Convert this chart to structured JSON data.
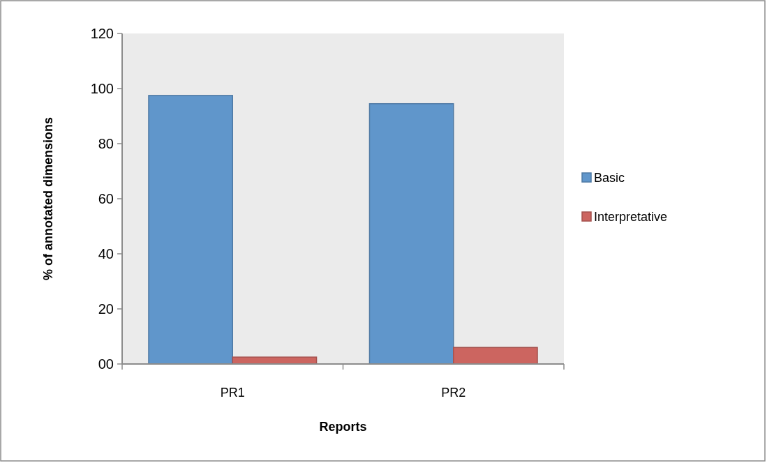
{
  "chart_data": {
    "type": "bar",
    "xlabel": "Reports",
    "ylabel": "% of annotated dimensions",
    "categories": [
      "PR1",
      "PR2"
    ],
    "series": [
      {
        "name": "Basic",
        "color": "#6096cb",
        "values": [
          97.5,
          94.5
        ]
      },
      {
        "name": "Interpretative",
        "color": "#cc6560",
        "values": [
          2.5,
          6
        ]
      }
    ],
    "ylim": [
      0,
      120
    ],
    "yticks": [
      {
        "value": 0,
        "label": "00"
      },
      20,
      40,
      60,
      80,
      100,
      120
    ],
    "legend": "right",
    "grid": false
  }
}
